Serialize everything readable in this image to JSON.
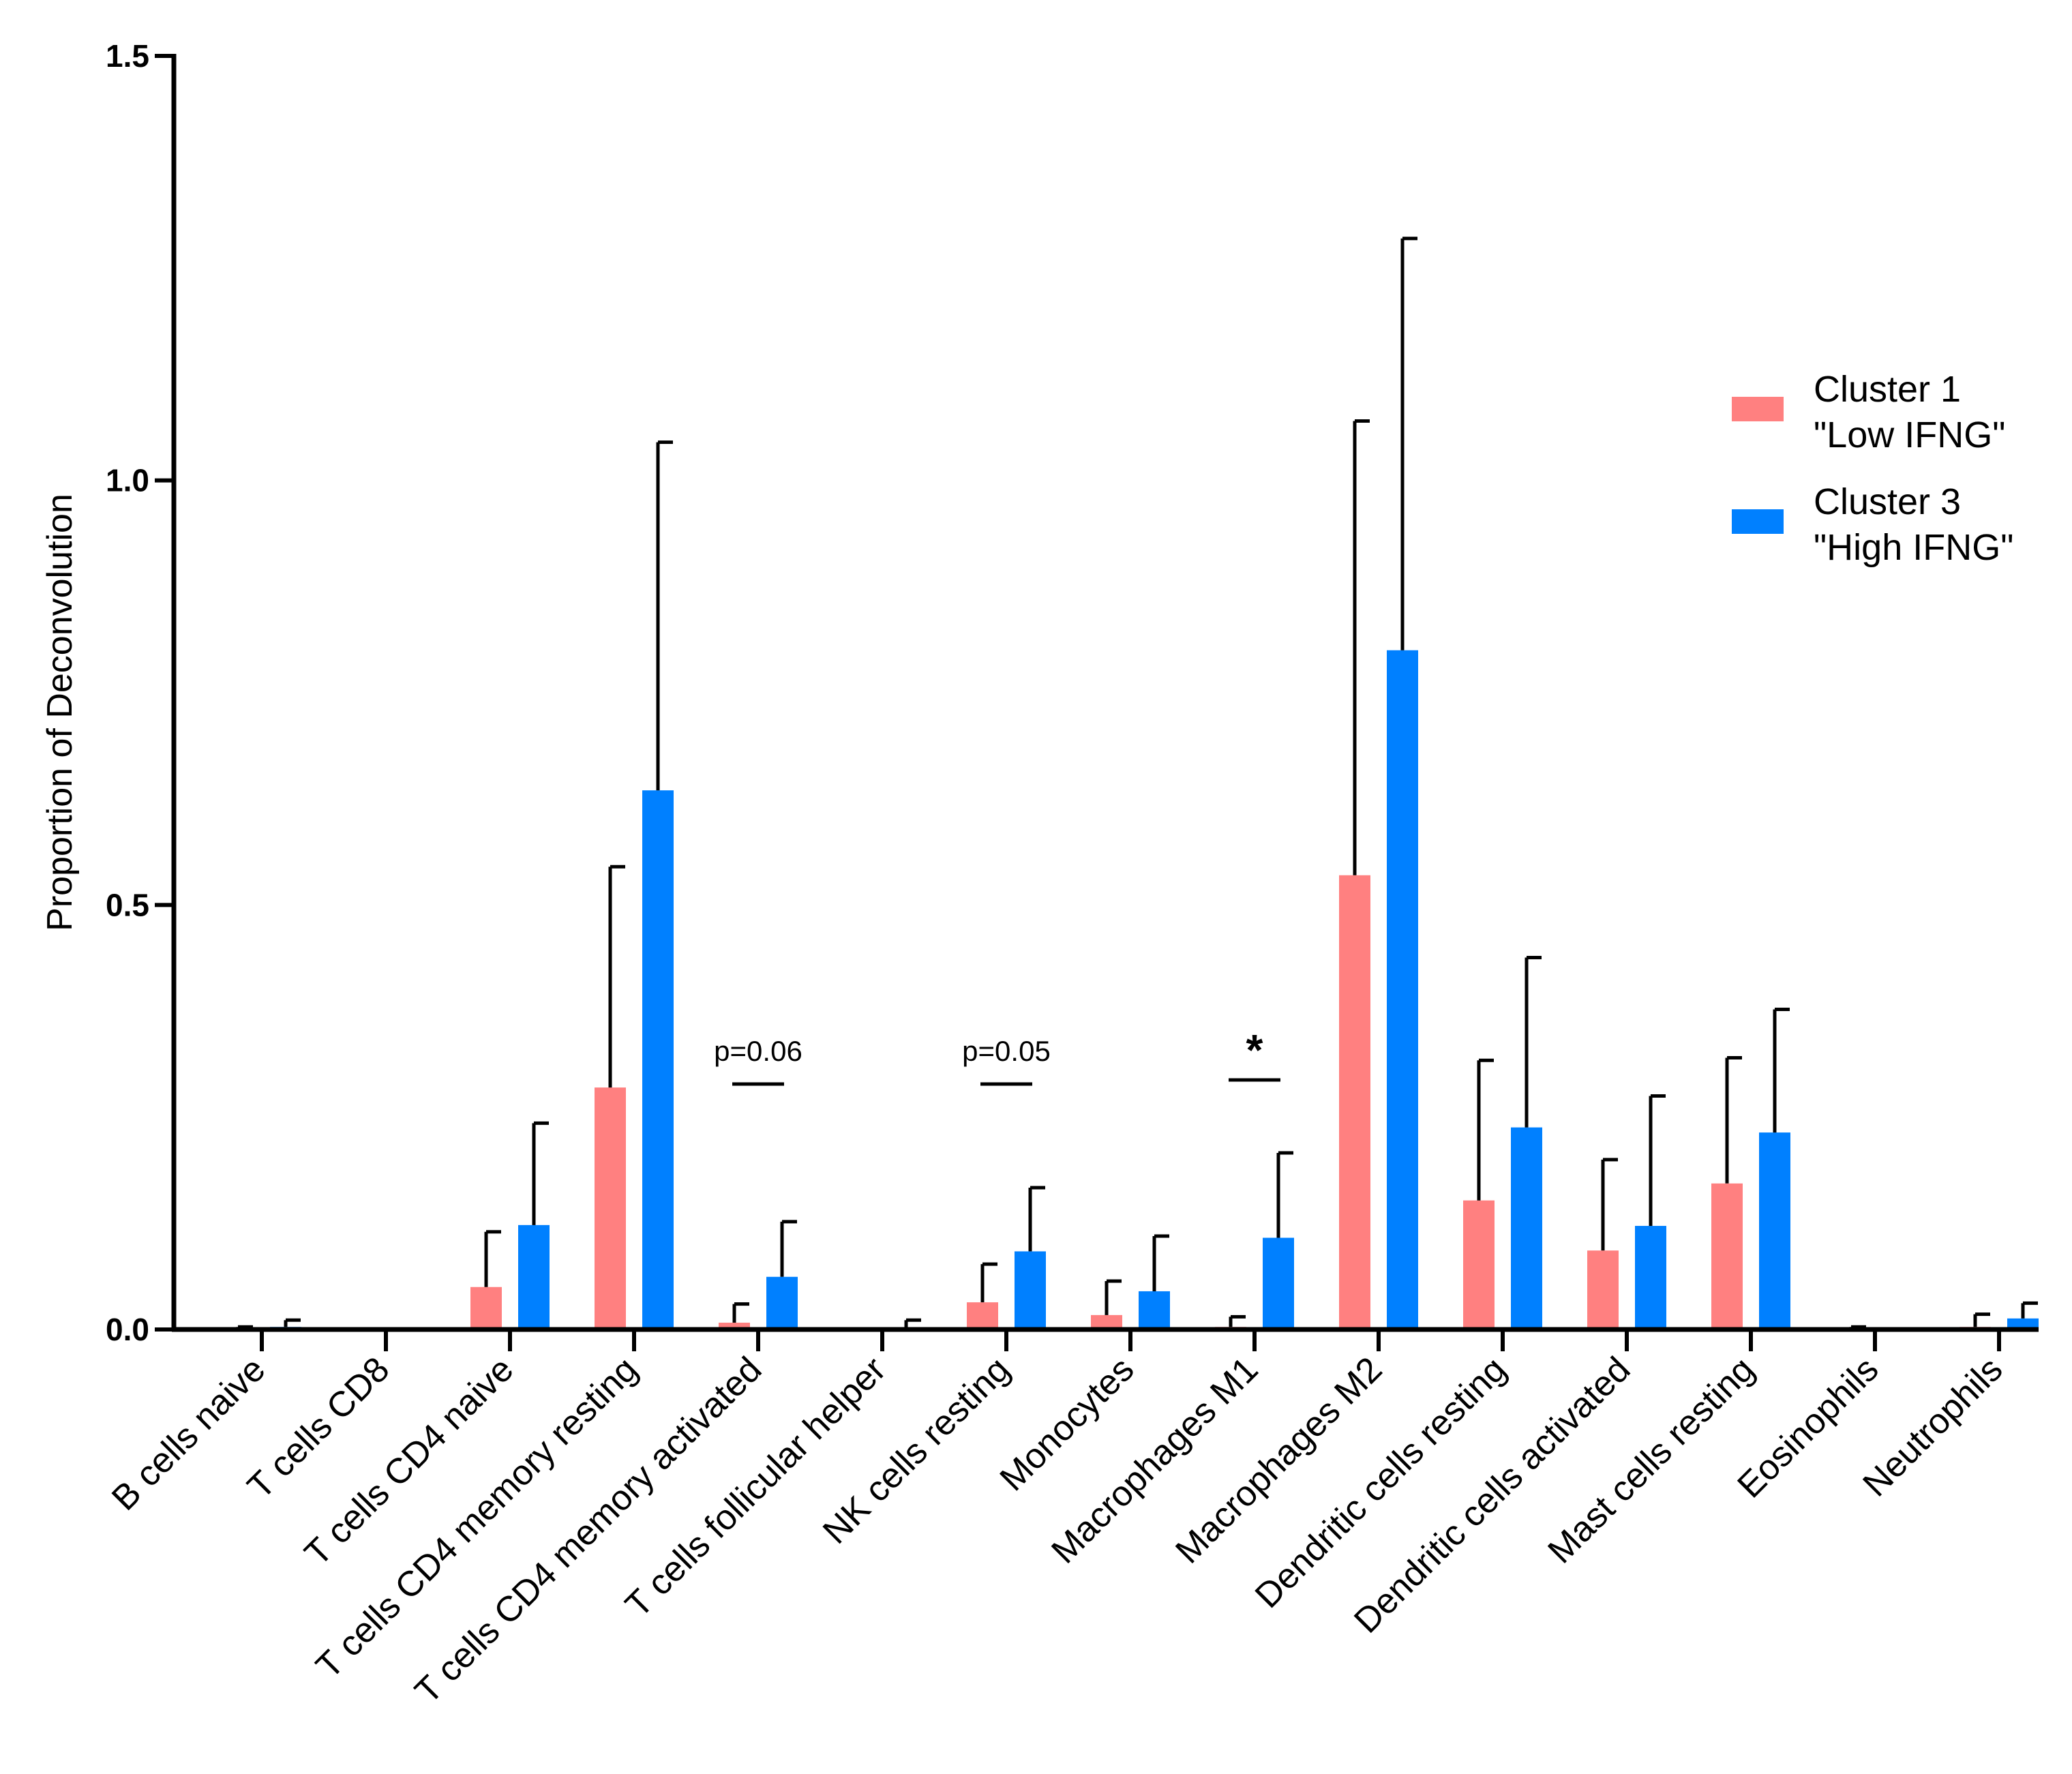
{
  "chart_data": {
    "type": "bar",
    "ylabel": "Proportion of Deconvolution",
    "ylim": [
      0,
      1.5
    ],
    "yticks": [
      "0.0",
      "0.5",
      "1.0",
      "1.5"
    ],
    "categories": [
      "B cells naive",
      "T cells CD8",
      "T cells CD4 naive",
      "T cells CD4 memory resting",
      "T cells CD4 memory activated",
      "T cells follicular helper",
      "NK cells resting",
      "Monocytes",
      "Macrophages M1",
      "Macrophages M2",
      "Dendritic cells resting",
      "Dendritic cells activated",
      "Mast cells resting",
      "Eosinophils",
      "Neutrophils"
    ],
    "series": [
      {
        "name_line1": "Cluster 1",
        "name_line2": "\"Low IFNG\"",
        "color": "#ff8080",
        "values": [
          0.001,
          0,
          0.05,
          0.285,
          0.008,
          0,
          0.032,
          0.017,
          0.003,
          0.535,
          0.152,
          0.093,
          0.172,
          0.001,
          0.003
        ],
        "errors": [
          0.002,
          0,
          0.065,
          0.26,
          0.022,
          0,
          0.045,
          0.04,
          0.012,
          0.535,
          0.165,
          0.107,
          0.148,
          0.002,
          0.015
        ]
      },
      {
        "name_line1": "Cluster 3",
        "name_line2": "\"High IFNG\"",
        "color": "#0080ff",
        "values": [
          0.003,
          0,
          0.123,
          0.635,
          0.062,
          0,
          0.092,
          0.045,
          0.108,
          0.8,
          0.238,
          0.122,
          0.232,
          0,
          0.013
        ],
        "errors": [
          0.008,
          0,
          0.12,
          0.41,
          0.065,
          0.011,
          0.075,
          0.065,
          0.1,
          0.485,
          0.2,
          0.153,
          0.145,
          0,
          0.018
        ]
      }
    ],
    "annotations": [
      {
        "text": "p=0.06",
        "category_index": 4
      },
      {
        "text": "p=0.05",
        "category_index": 6
      },
      {
        "text": "*",
        "category_index": 8
      }
    ],
    "legend_position": "right"
  }
}
